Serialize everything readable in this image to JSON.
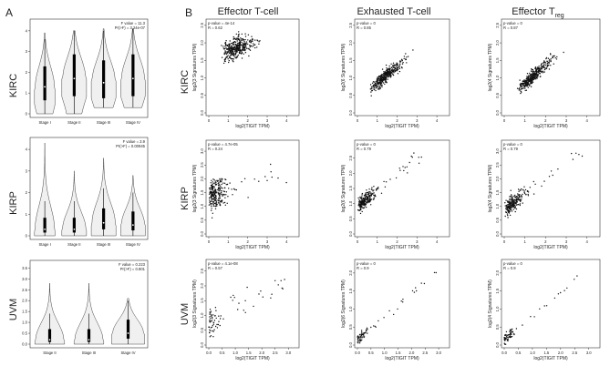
{
  "panel_labels": {
    "a": "A",
    "b": "B"
  },
  "column_titles": [
    "Effector T-cell",
    "Exhausted T-cell"
  ],
  "column_title_treg": {
    "base": "Effector T",
    "sub": "reg"
  },
  "row_labels": [
    "KIRC",
    "KIRP",
    "UVM"
  ],
  "violin_stats": [
    [
      "F value = 11.3",
      "Pr(>F) = 3.24e-07"
    ],
    [
      "F value = 3.9",
      "Pr(>F) = 0.00945"
    ],
    [
      "F value = 0.223",
      "Pr(>F) = 0.801"
    ]
  ],
  "scatter_stats": [
    [
      [
        "p-value = 4e-14",
        "R = 0.62"
      ],
      [
        "p-value = 0",
        "R = 0.85"
      ],
      [
        "p-value = 0",
        "R = 0.87"
      ]
    ],
    [
      [
        "p-value = 4.7e-05",
        "R = 0.24"
      ],
      [
        "p-value = 0",
        "R = 0.79"
      ],
      [
        "p-value = 0",
        "R = 0.79"
      ]
    ],
    [
      [
        "p-value = 4.1e-08",
        "R = 0.57"
      ],
      [
        "p-value = 0",
        "R = 0.9"
      ],
      [
        "p-value = 0",
        "R = 0.9"
      ]
    ]
  ],
  "scatter_ylabels": [
    "log2(3 Signatures TPM)",
    "log2(6 Signatures TPM)",
    "log2(4 Signatures TPM)"
  ],
  "scatter_xlabel": "log2(TIGIT TPM)",
  "chart_data": [
    {
      "type": "violin",
      "cancer": "KIRC",
      "categories": [
        "Stage I",
        "Stage II",
        "Stage III",
        "Stage IV"
      ],
      "medians": [
        1.3,
        1.7,
        1.5,
        1.7
      ],
      "ylim": [
        0,
        4.3
      ],
      "yticks": [
        "0",
        "1",
        "2",
        "3",
        "4"
      ]
    },
    {
      "type": "violin",
      "cancer": "KIRP",
      "categories": [
        "Stage I",
        "Stage II",
        "Stage III",
        "Stage IV"
      ],
      "medians": [
        0.3,
        0.3,
        0.6,
        0.5
      ],
      "ylim": [
        0,
        4.3
      ],
      "yticks": [
        "0",
        "1",
        "2",
        "3",
        "4"
      ]
    },
    {
      "type": "violin",
      "cancer": "UVM",
      "categories": [
        "Stage II",
        "Stage III",
        "Stage IV"
      ],
      "medians": [
        0.2,
        0.2,
        0.5
      ],
      "ylim": [
        0,
        3.6
      ],
      "yticks": [
        "0.0",
        "0.5",
        "1.0",
        "1.5",
        "2.0",
        "2.5",
        "3.0",
        "3.5"
      ]
    },
    {
      "type": "scatter",
      "cancer": "KIRC",
      "signature": "Effector T-cell",
      "xlim": [
        0,
        4.5
      ],
      "ylim": [
        0,
        2.6
      ],
      "xticks": [
        "0",
        "1",
        "2",
        "3",
        "4"
      ],
      "yticks": [
        "0.0",
        "0.5",
        "1.0",
        "1.5",
        "2.0",
        "2.5"
      ]
    },
    {
      "type": "scatter",
      "cancer": "KIRC",
      "signature": "Exhausted T-cell",
      "xlim": [
        0,
        4.5
      ],
      "ylim": [
        0,
        2.6
      ],
      "xticks": [
        "0",
        "1",
        "2",
        "3",
        "4"
      ],
      "yticks": [
        "0.0",
        "0.5",
        "1.0",
        "1.5",
        "2.0",
        "2.5"
      ]
    },
    {
      "type": "scatter",
      "cancer": "KIRC",
      "signature": "Effector Treg",
      "xlim": [
        0,
        4.5
      ],
      "ylim": [
        0,
        2.6
      ],
      "xticks": [
        "0",
        "1",
        "2",
        "3",
        "4"
      ],
      "yticks": [
        "0.0",
        "0.5",
        "1.0",
        "1.5",
        "2.0",
        "2.5"
      ]
    },
    {
      "type": "scatter",
      "cancer": "KIRP",
      "signature": "Effector T-cell",
      "xlim": [
        0,
        4.5
      ],
      "ylim": [
        0,
        3.3
      ],
      "xticks": [
        "0",
        "1",
        "2",
        "3",
        "4"
      ],
      "yticks": [
        "0.0",
        "0.5",
        "1.0",
        "1.5",
        "2.0",
        "2.5",
        "3.0"
      ]
    },
    {
      "type": "scatter",
      "cancer": "KIRP",
      "signature": "Exhausted T-cell",
      "xlim": [
        0,
        4.5
      ],
      "ylim": [
        0,
        3.0
      ],
      "xticks": [
        "0",
        "1",
        "2",
        "3",
        "4"
      ],
      "yticks": [
        "0.0",
        "0.5",
        "1.0",
        "1.5",
        "2.0",
        "2.5"
      ]
    },
    {
      "type": "scatter",
      "cancer": "KIRP",
      "signature": "Effector Treg",
      "xlim": [
        0,
        4.5
      ],
      "ylim": [
        0,
        3.3
      ],
      "xticks": [
        "0",
        "1",
        "2",
        "3",
        "4"
      ],
      "yticks": [
        "0.0",
        "0.5",
        "1.0",
        "1.5",
        "2.0",
        "2.5",
        "3.0"
      ]
    },
    {
      "type": "scatter",
      "cancer": "UVM",
      "signature": "Effector T-cell",
      "xlim": [
        0,
        3.3
      ],
      "ylim": [
        0,
        2.8
      ],
      "xticks": [
        "0.0",
        "0.5",
        "1.0",
        "1.5",
        "2.0",
        "2.5",
        "3.0"
      ],
      "yticks": [
        "0.0",
        "0.5",
        "1.0",
        "1.5",
        "2.0",
        "2.5"
      ]
    },
    {
      "type": "scatter",
      "cancer": "UVM",
      "signature": "Exhausted T-cell",
      "xlim": [
        0,
        3.3
      ],
      "ylim": [
        0,
        2.3
      ],
      "xticks": [
        "0.0",
        "0.5",
        "1.0",
        "1.5",
        "2.0",
        "2.5",
        "3.0"
      ],
      "yticks": [
        "0.0",
        "0.5",
        "1.0",
        "1.5",
        "2.0"
      ]
    },
    {
      "type": "scatter",
      "cancer": "UVM",
      "signature": "Effector Treg",
      "xlim": [
        0,
        3.3
      ],
      "ylim": [
        0,
        2.3
      ],
      "xticks": [
        "0.0",
        "0.5",
        "1.0",
        "1.5",
        "2.0",
        "2.5",
        "3.0"
      ],
      "yticks": [
        "0.0",
        "0.5",
        "1.0",
        "1.5",
        "2.0"
      ]
    }
  ]
}
